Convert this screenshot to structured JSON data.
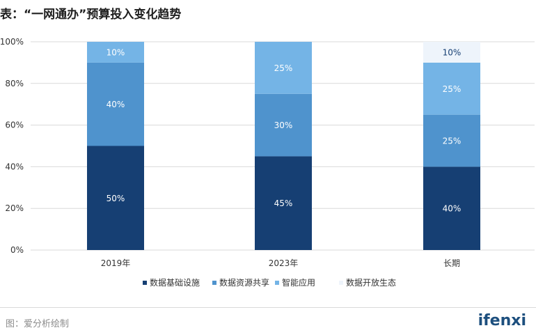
{
  "title": "表：“一网通办”预算投入变化趋势",
  "source": "图：爱分析绘制",
  "logo": "ifenxi",
  "chart_data": {
    "type": "bar",
    "stacked": true,
    "categories": [
      "2019年",
      "2023年",
      "长期"
    ],
    "series": [
      {
        "name": "数据基础设施",
        "color": "#163f73",
        "values": [
          50,
          45,
          40
        ]
      },
      {
        "name": "数据资源共享",
        "color": "#4f93cd",
        "values": [
          40,
          30,
          25
        ]
      },
      {
        "name": "智能应用",
        "color": "#74b4e6",
        "values": [
          10,
          25,
          25
        ]
      },
      {
        "name": "数据开放生态",
        "color": "#eef4fb",
        "values": [
          0,
          0,
          10
        ]
      }
    ],
    "data_labels": [
      [
        "50%",
        "45%",
        "40%"
      ],
      [
        "40%",
        "30%",
        "25%"
      ],
      [
        "10%",
        "25%",
        "25%"
      ],
      [
        "",
        "",
        "10%"
      ]
    ],
    "yticks": [
      0,
      20,
      40,
      60,
      80,
      100
    ],
    "ytick_labels": [
      "0%",
      "20%",
      "40%",
      "60%",
      "80%",
      "100%"
    ],
    "ylim": [
      0,
      100
    ],
    "grid": true,
    "legend_position": "bottom"
  }
}
